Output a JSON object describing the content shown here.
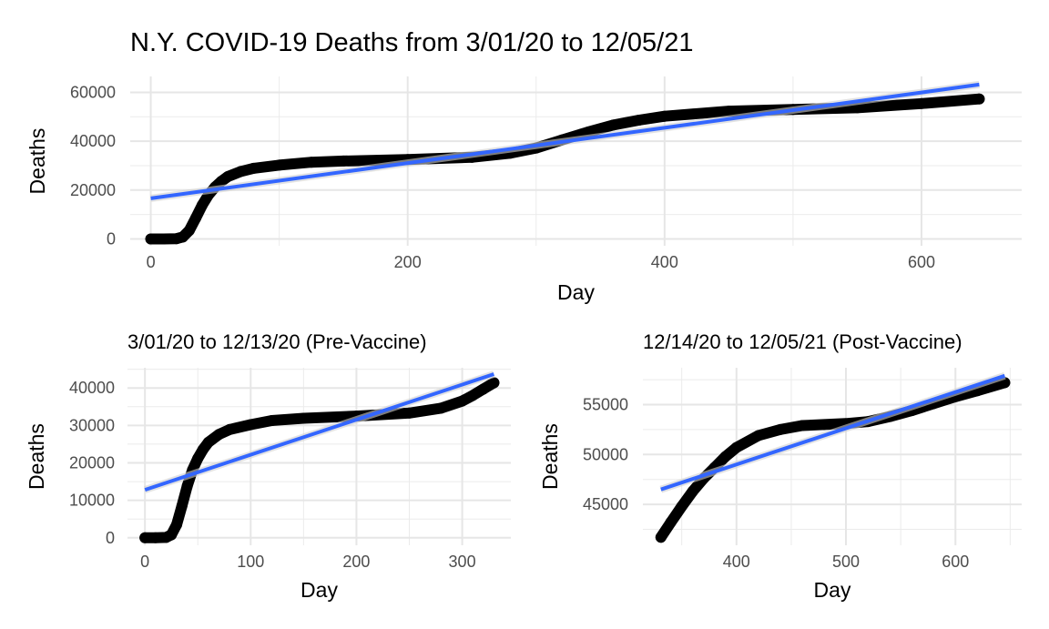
{
  "chart_data": [
    {
      "type": "scatter",
      "title": "N.Y. COVID-19 Deaths from 3/01/20 to 12/05/21",
      "xlabel": "Day",
      "ylabel": "Deaths",
      "xlim": [
        -16,
        678
      ],
      "ylim": [
        -2800,
        66500
      ],
      "xticks": [
        0,
        200,
        400,
        600
      ],
      "yticks": [
        0,
        20000,
        40000,
        60000
      ],
      "grid": true,
      "series": [
        {
          "kind": "points",
          "color": "#000000",
          "x": [
            0,
            10,
            20,
            25,
            30,
            35,
            40,
            45,
            50,
            55,
            60,
            70,
            80,
            100,
            125,
            150,
            200,
            250,
            280,
            300,
            320,
            340,
            360,
            380,
            400,
            450,
            500,
            550,
            600,
            645
          ],
          "y": [
            0,
            0,
            100,
            800,
            3500,
            8500,
            13800,
            18100,
            21200,
            23600,
            25500,
            27600,
            28900,
            30200,
            31400,
            31900,
            32500,
            33400,
            35100,
            37200,
            40500,
            43700,
            46600,
            48600,
            50200,
            52300,
            53000,
            53700,
            55400,
            57300
          ]
        },
        {
          "kind": "fit",
          "color": "#3366ff",
          "x": [
            0,
            645
          ],
          "y": [
            16600,
            63200
          ]
        }
      ]
    },
    {
      "type": "scatter",
      "title": "3/01/20 to 12/13/20 (Pre-Vaccine)",
      "xlabel": "Day",
      "ylabel": "Deaths",
      "xlim": [
        -16.5,
        346
      ],
      "ylim": [
        -2000,
        45400
      ],
      "xticks": [
        0,
        100,
        200,
        300
      ],
      "yticks": [
        0,
        10000,
        20000,
        30000,
        40000
      ],
      "grid": true,
      "series": [
        {
          "kind": "points",
          "color": "#000000",
          "x": [
            0,
            10,
            20,
            25,
            30,
            35,
            40,
            45,
            50,
            55,
            60,
            70,
            80,
            100,
            120,
            150,
            200,
            250,
            280,
            300,
            310,
            320,
            330
          ],
          "y": [
            0,
            0,
            100,
            800,
            3500,
            8500,
            13800,
            18100,
            21200,
            23600,
            25500,
            27600,
            28900,
            30200,
            31300,
            31900,
            32500,
            33300,
            34600,
            36500,
            38000,
            39700,
            41400
          ]
        },
        {
          "kind": "fit",
          "color": "#3366ff",
          "x": [
            0,
            330
          ],
          "y": [
            12800,
            43700
          ]
        }
      ]
    },
    {
      "type": "scatter",
      "title": "12/14/20 to 12/05/21 (Post-Vaccine)",
      "xlabel": "Day",
      "ylabel": "Deaths",
      "xlim": [
        314.5,
        660.5
      ],
      "ylim": [
        40900,
        58700
      ],
      "xticks": [
        400,
        500,
        600
      ],
      "yticks": [
        45000,
        50000,
        55000
      ],
      "grid": true,
      "series": [
        {
          "kind": "points",
          "color": "#000000",
          "x": [
            331,
            340,
            350,
            360,
            370,
            380,
            390,
            400,
            420,
            440,
            460,
            480,
            500,
            520,
            540,
            560,
            580,
            600,
            620,
            645
          ],
          "y": [
            41700,
            43200,
            44800,
            46300,
            47600,
            48700,
            49800,
            50700,
            51900,
            52500,
            52900,
            53000,
            53100,
            53300,
            53800,
            54400,
            55100,
            55800,
            56400,
            57200
          ]
        },
        {
          "kind": "fit",
          "color": "#3366ff",
          "x": [
            331,
            645
          ],
          "y": [
            46500,
            57900
          ]
        }
      ]
    }
  ]
}
